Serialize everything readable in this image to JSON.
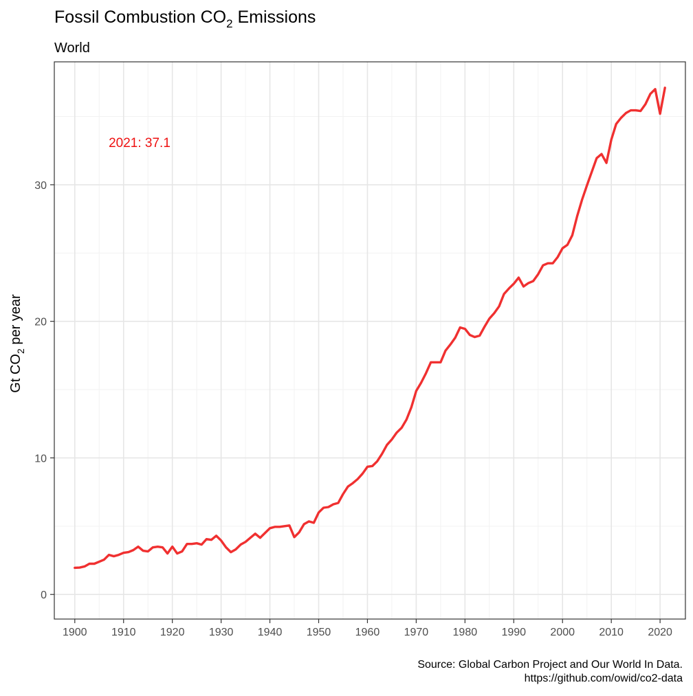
{
  "chart_data": {
    "type": "line",
    "title_main": "Fossil Combustion CO",
    "title_sub": "2",
    "title_end": " Emissions",
    "subtitle": "World",
    "ylabel_main": "Gt CO",
    "ylabel_sub": "2",
    "ylabel_end": " per year",
    "annotation": "2021: 37.1",
    "caption_line1": "Source: Global Carbon Project and Our World In Data.",
    "caption_line2": "https://github.com/owid/co2-data",
    "xlim": [
      1895.8,
      2025.2
    ],
    "ylim": [
      -1.8,
      39.0
    ],
    "x_ticks": [
      1900,
      1910,
      1920,
      1930,
      1940,
      1950,
      1960,
      1970,
      1980,
      1990,
      2000,
      2010,
      2020
    ],
    "x_minor_ticks": [
      1905,
      1915,
      1925,
      1935,
      1945,
      1955,
      1965,
      1975,
      1985,
      1995,
      2005,
      2015,
      2025
    ],
    "y_ticks": [
      0,
      10,
      20,
      30
    ],
    "y_minor_ticks": [
      5,
      15,
      25,
      35
    ],
    "grid": true,
    "series": [
      {
        "color": "#f03030",
        "x": [
          1900,
          1901,
          1902,
          1903,
          1904,
          1905,
          1906,
          1907,
          1908,
          1909,
          1910,
          1911,
          1912,
          1913,
          1914,
          1915,
          1916,
          1917,
          1918,
          1919,
          1920,
          1921,
          1922,
          1923,
          1924,
          1925,
          1926,
          1927,
          1928,
          1929,
          1930,
          1931,
          1932,
          1933,
          1934,
          1935,
          1936,
          1937,
          1938,
          1939,
          1940,
          1941,
          1942,
          1943,
          1944,
          1945,
          1946,
          1947,
          1948,
          1949,
          1950,
          1951,
          1952,
          1953,
          1954,
          1955,
          1956,
          1957,
          1958,
          1959,
          1960,
          1961,
          1962,
          1963,
          1964,
          1965,
          1966,
          1967,
          1968,
          1969,
          1970,
          1971,
          1972,
          1973,
          1974,
          1975,
          1976,
          1977,
          1978,
          1979,
          1980,
          1981,
          1982,
          1983,
          1984,
          1985,
          1986,
          1987,
          1988,
          1989,
          1990,
          1991,
          1992,
          1993,
          1994,
          1995,
          1996,
          1997,
          1998,
          1999,
          2000,
          2001,
          2002,
          2003,
          2004,
          2005,
          2006,
          2007,
          2008,
          2009,
          2010,
          2011,
          2012,
          2013,
          2014,
          2015,
          2016,
          2017,
          2018,
          2019,
          2020,
          2021
        ],
        "values": [
          1.95,
          1.97,
          2.05,
          2.25,
          2.25,
          2.4,
          2.55,
          2.9,
          2.8,
          2.9,
          3.05,
          3.1,
          3.25,
          3.5,
          3.2,
          3.15,
          3.45,
          3.5,
          3.45,
          3.0,
          3.5,
          3.0,
          3.15,
          3.7,
          3.7,
          3.75,
          3.65,
          4.05,
          4.0,
          4.3,
          3.95,
          3.45,
          3.1,
          3.3,
          3.65,
          3.85,
          4.15,
          4.45,
          4.15,
          4.5,
          4.85,
          4.95,
          4.95,
          5.0,
          5.05,
          4.2,
          4.55,
          5.15,
          5.35,
          5.25,
          6.0,
          6.35,
          6.4,
          6.6,
          6.7,
          7.35,
          7.9,
          8.15,
          8.45,
          8.85,
          9.35,
          9.4,
          9.75,
          10.3,
          10.95,
          11.35,
          11.85,
          12.2,
          12.8,
          13.7,
          14.9,
          15.5,
          16.2,
          17.0,
          17.0,
          17.0,
          17.85,
          18.3,
          18.8,
          19.55,
          19.45,
          19.0,
          18.85,
          18.95,
          19.6,
          20.2,
          20.6,
          21.1,
          22.0,
          22.4,
          22.75,
          23.2,
          22.55,
          22.8,
          22.95,
          23.45,
          24.1,
          24.25,
          24.25,
          24.7,
          25.35,
          25.6,
          26.3,
          27.7,
          28.9,
          29.95,
          30.95,
          31.95,
          32.25,
          31.6,
          33.3,
          34.45,
          34.9,
          35.25,
          35.45,
          35.45,
          35.4,
          35.9,
          36.65,
          37.0,
          35.2,
          37.1
        ]
      }
    ]
  }
}
